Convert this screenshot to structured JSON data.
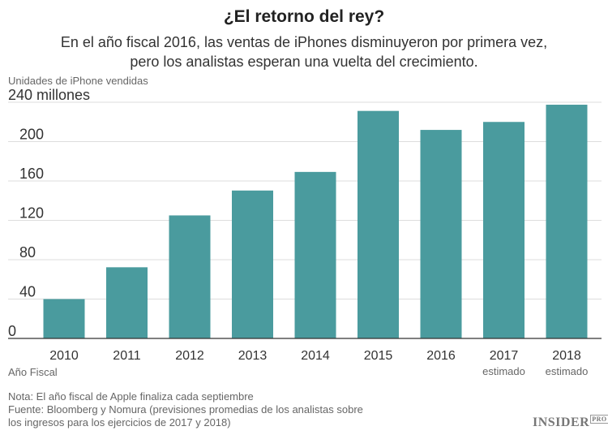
{
  "title": "¿El retorno del rey?",
  "subtitle_lines": [
    "En el año fiscal 2016, las ventas de iPhones disminuyeron por primera vez,",
    "pero los analistas esperan una vuelta del crecimiento."
  ],
  "notes": [
    "Nota: El año fiscal de Apple finaliza cada septiembre",
    "Fuente: Bloomberg y Nomura (previsiones promedias de los analistas sobre",
    "los ingresos para los ejercicios de 2017 y 2018)"
  ],
  "logo": {
    "text": "INSIDER",
    "badge": "PRO"
  },
  "colors": {
    "bar": "#4a9b9e",
    "grid": "#dddddd",
    "axis": "#333333"
  },
  "chart_data": {
    "type": "bar",
    "ylabel": "Unidades de iPhone vendidas",
    "xlabel": "Año Fiscal",
    "categories": [
      "2010",
      "2011",
      "2012",
      "2013",
      "2014",
      "2015",
      "2016",
      "2017",
      "2018"
    ],
    "category_sublabels": [
      "",
      "",
      "",
      "",
      "",
      "",
      "",
      "estimado",
      "estimado"
    ],
    "values": [
      40,
      72.3,
      125,
      150.3,
      169.2,
      231.2,
      211.9,
      220,
      237.5
    ],
    "ylim": [
      0,
      240
    ],
    "yticks": [
      0,
      40,
      80,
      120,
      160,
      200,
      240
    ],
    "ytick_labels": [
      "0",
      "40",
      "80",
      "120",
      "160",
      "200",
      "240 millones"
    ],
    "grid": true
  }
}
